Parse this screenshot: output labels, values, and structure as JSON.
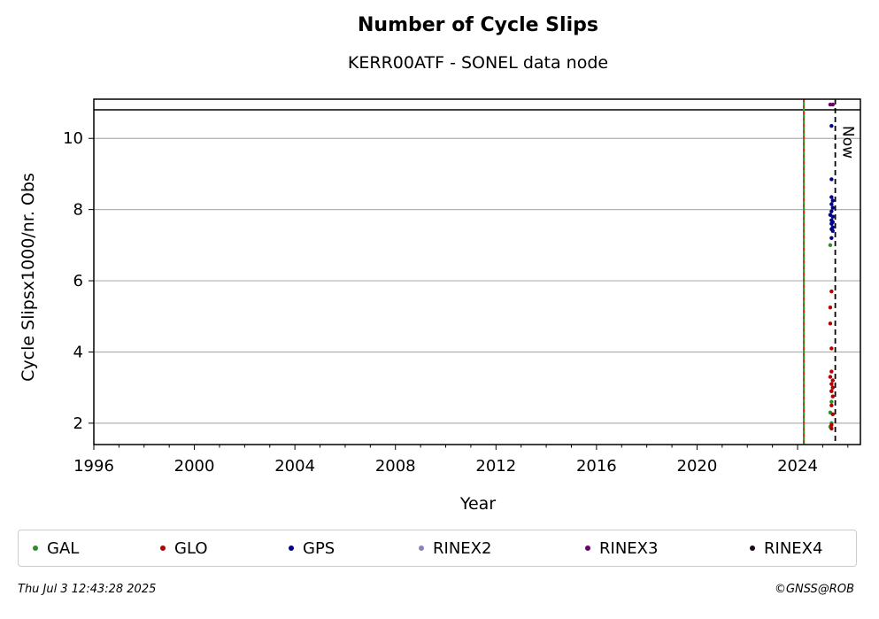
{
  "chart_data": {
    "type": "scatter",
    "title": "Number of Cycle Slips",
    "subtitle": "KERR00ATF - SONEL data node",
    "xlabel": "Year",
    "ylabel": "Cycle Slipsx1000/nr. Obs",
    "xlim": [
      1996,
      2026.5
    ],
    "ylim": [
      1.4,
      11.1
    ],
    "x_ticks": [
      1996,
      2000,
      2004,
      2008,
      2012,
      2016,
      2020,
      2024
    ],
    "y_ticks": [
      2,
      4,
      6,
      8,
      10
    ],
    "grid": "horizontal",
    "threshold_line_y": 10.8,
    "vertical_lines": [
      {
        "x": 2024.25,
        "colors": [
          "#2ca02c",
          "#d62728"
        ],
        "style": "solid/dashed"
      },
      {
        "x": 2025.5,
        "color": "#000000",
        "style": "dashed",
        "label": "Now"
      }
    ],
    "series": [
      {
        "name": "GAL",
        "color": "#2e8b2e",
        "points": [
          [
            2025.3,
            7.0
          ],
          [
            2025.35,
            2.9
          ],
          [
            2025.35,
            2.6
          ],
          [
            2025.3,
            2.3
          ],
          [
            2025.35,
            2.0
          ],
          [
            2025.3,
            1.9
          ]
        ]
      },
      {
        "name": "GLO",
        "color": "#b00000",
        "points": [
          [
            2025.35,
            5.7
          ],
          [
            2025.3,
            5.25
          ],
          [
            2025.3,
            4.8
          ],
          [
            2025.35,
            4.1
          ],
          [
            2025.35,
            3.45
          ],
          [
            2025.3,
            3.3
          ],
          [
            2025.4,
            3.2
          ],
          [
            2025.35,
            3.1
          ],
          [
            2025.4,
            3.0
          ],
          [
            2025.35,
            2.9
          ],
          [
            2025.4,
            2.75
          ],
          [
            2025.35,
            2.5
          ],
          [
            2025.4,
            2.25
          ],
          [
            2025.35,
            1.95
          ],
          [
            2025.35,
            1.85
          ]
        ]
      },
      {
        "name": "GPS",
        "color": "#00008b",
        "points": [
          [
            2025.35,
            10.35
          ],
          [
            2025.35,
            8.85
          ],
          [
            2025.35,
            8.35
          ],
          [
            2025.4,
            8.25
          ],
          [
            2025.35,
            8.15
          ],
          [
            2025.4,
            8.05
          ],
          [
            2025.35,
            7.95
          ],
          [
            2025.3,
            7.85
          ],
          [
            2025.4,
            7.8
          ],
          [
            2025.35,
            7.7
          ],
          [
            2025.4,
            7.65
          ],
          [
            2025.35,
            7.6
          ],
          [
            2025.4,
            7.5
          ],
          [
            2025.35,
            7.45
          ],
          [
            2025.4,
            7.4
          ],
          [
            2025.35,
            7.2
          ]
        ]
      },
      {
        "name": "RINEX2",
        "color": "#8a80c0",
        "points": []
      },
      {
        "name": "RINEX3",
        "color": "#6a006a",
        "points": [
          [
            2025.3,
            10.95
          ],
          [
            2025.4,
            10.95
          ]
        ]
      },
      {
        "name": "RINEX4",
        "color": "#1a0a1a",
        "points": []
      }
    ],
    "legend_position": "bottom"
  },
  "footer": {
    "timestamp": "Thu Jul  3 12:43:28 2025",
    "credit": "©GNSS@ROB"
  },
  "now_label": "Now"
}
